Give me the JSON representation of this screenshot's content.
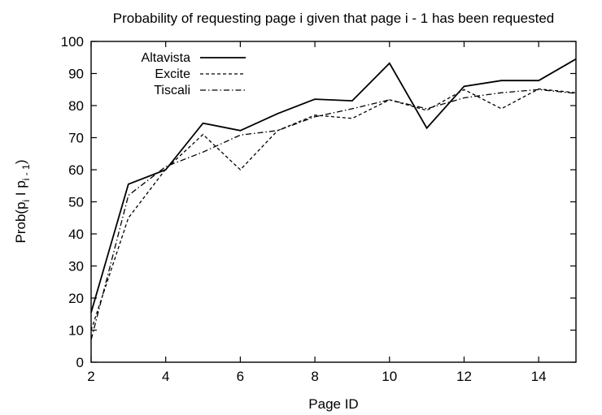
{
  "chart_data": {
    "type": "line",
    "title": "Probability of requesting page i given that page i - 1 has been requested",
    "xlabel": "Page ID",
    "ylabel": {
      "base": "Prob(p",
      "sub1": "i",
      "mid": " I p",
      "sub2": "i - 1",
      "end": ")"
    },
    "xlim": [
      2,
      15
    ],
    "ylim": [
      0,
      100
    ],
    "x_ticks": [
      2,
      4,
      6,
      8,
      10,
      12,
      14
    ],
    "y_ticks": [
      0,
      10,
      20,
      30,
      40,
      50,
      60,
      70,
      80,
      90,
      100
    ],
    "grid": false,
    "legend": "top-left",
    "x": [
      2,
      3,
      4,
      5,
      6,
      7,
      8,
      9,
      10,
      11,
      12,
      13,
      14,
      15
    ],
    "series": [
      {
        "name": "Altavista",
        "dash": "solid",
        "values": [
          15.5,
          55.5,
          60,
          74.5,
          72.2,
          77.5,
          82,
          81.5,
          93.2,
          73,
          86,
          87.8,
          87.8,
          94.5
        ]
      },
      {
        "name": "Excite",
        "dash": "dashed",
        "values": [
          10,
          45,
          60.2,
          71,
          60,
          72.2,
          77,
          76,
          81.8,
          78.5,
          85,
          79,
          85.2,
          84
        ]
      },
      {
        "name": "Tiscali",
        "dash": "dashdot",
        "values": [
          7,
          52,
          61,
          65.5,
          70.8,
          72.2,
          76.5,
          79,
          81.8,
          79,
          82.4,
          84,
          85,
          83.8
        ]
      }
    ]
  }
}
